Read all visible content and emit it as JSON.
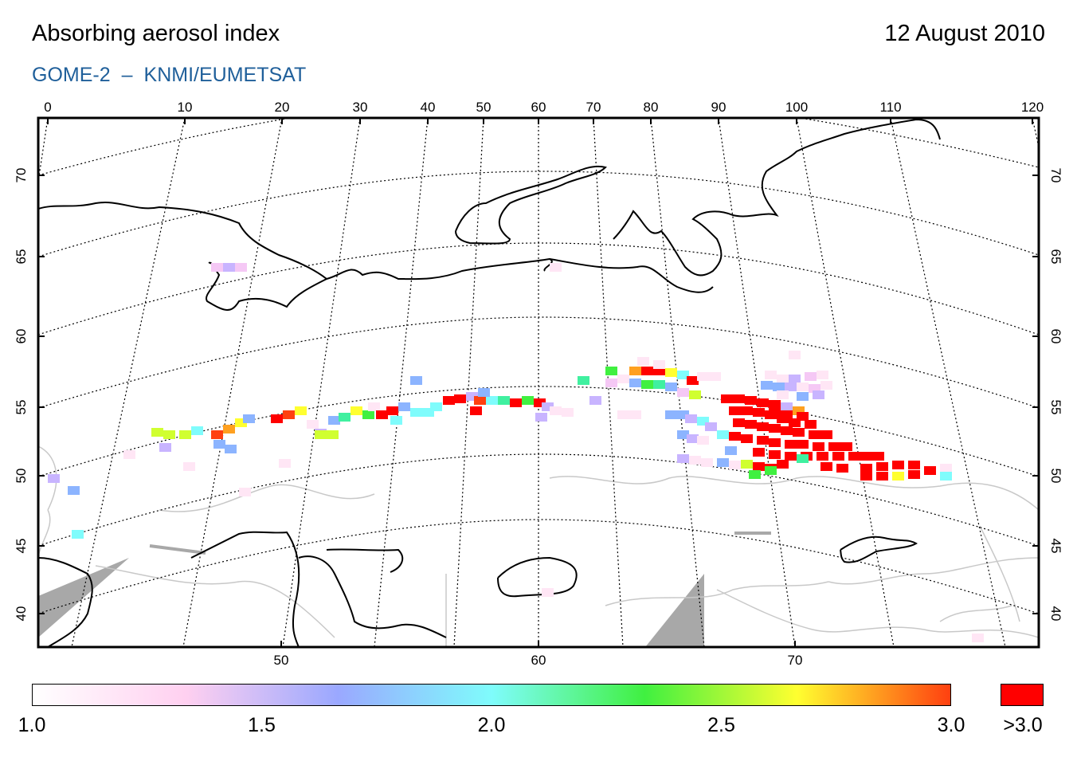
{
  "header": {
    "title": "Absorbing aerosol index",
    "date": "12 August 2010",
    "subtitle_instrument": "GOME-2",
    "subtitle_dash": "–",
    "subtitle_source": "KNMI/EUMETSAT"
  },
  "map": {
    "top_longitude_labels": [
      "0",
      "10",
      "20",
      "30",
      "40",
      "50",
      "60",
      "70",
      "80",
      "90",
      "100",
      "110",
      "120"
    ],
    "bottom_longitude_labels": [
      "50",
      "60",
      "70"
    ],
    "latitude_labels": [
      "40",
      "45",
      "50",
      "55",
      "60",
      "65",
      "70"
    ],
    "colors": {
      "frame": "#000000",
      "coastline": "#000000",
      "borders": "#c8c8c8",
      "no_data": "#a8a8a8",
      "graticule": "#000000"
    }
  },
  "colorbar": {
    "tick_labels": [
      "1.0",
      "1.5",
      "2.0",
      "2.5",
      "3.0"
    ],
    "overflow_label": ">3.0",
    "stops": [
      "#ffffff",
      "#ffd0f0",
      "#9aa8ff",
      "#7ffcfc",
      "#40f040",
      "#ffff30",
      "#ff4010"
    ],
    "overflow_color": "#ff0000"
  },
  "aerosol_plume": {
    "description_series": "Absorbing aerosol index values (dimensionless) of the smoke plume across western Russia",
    "value_range": [
      1.0,
      3.0
    ],
    "overflow_value": ">3.0"
  }
}
